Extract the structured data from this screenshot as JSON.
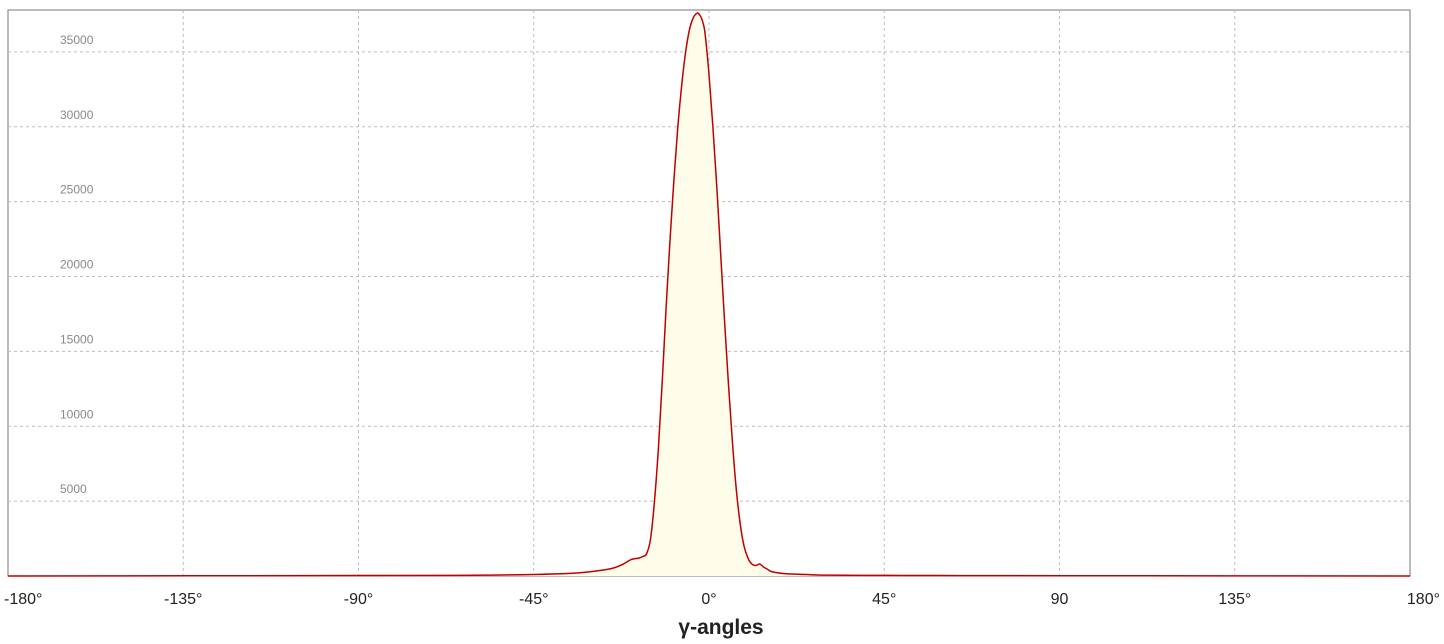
{
  "chart_data": {
    "type": "area",
    "title": "",
    "xlabel": "γ-angles",
    "ylabel": "",
    "xlim": [
      -180,
      180
    ],
    "ylim": [
      0,
      37800
    ],
    "grid": true,
    "legend": "none",
    "x_ticks": [
      -180,
      -135,
      -90,
      -45,
      0,
      45,
      90,
      135,
      180
    ],
    "x_tick_labels": [
      "-180°",
      "-135°",
      "-90°",
      "-45°",
      "0°",
      "45°",
      "90",
      "135°",
      "180°"
    ],
    "y_ticks": [
      5000,
      10000,
      15000,
      20000,
      25000,
      30000,
      35000
    ],
    "y_tick_labels": [
      "5000",
      "10000",
      "15000",
      "20000",
      "25000",
      "30000",
      "35000"
    ],
    "line_color": "#c00000",
    "fill_color": "#fdfdea",
    "series": [
      {
        "x": [
          -180,
          -90,
          -60,
          -45,
          -35,
          -30,
          -25,
          -22,
          -20,
          -18,
          -17,
          -16,
          -15,
          -14,
          -13,
          -12,
          -11,
          -10,
          -9,
          -8,
          -7,
          -6,
          -5,
          -4,
          -3,
          -2.5,
          -2,
          -1.5,
          -1,
          0,
          1,
          2,
          3,
          4,
          5,
          6,
          7,
          8,
          9,
          10,
          11,
          12,
          13,
          14,
          15,
          16,
          18,
          20,
          25,
          30,
          45,
          60,
          90,
          180
        ],
        "values": [
          0,
          30,
          50,
          100,
          180,
          300,
          500,
          800,
          1100,
          1200,
          1300,
          1500,
          2500,
          5000,
          8500,
          13000,
          18000,
          22500,
          26500,
          30000,
          32800,
          35000,
          36500,
          37300,
          37600,
          37500,
          37300,
          36900,
          36200,
          33500,
          30000,
          26000,
          21500,
          17000,
          12800,
          9000,
          5800,
          3500,
          2000,
          1200,
          800,
          700,
          800,
          600,
          450,
          300,
          200,
          150,
          100,
          60,
          40,
          30,
          20,
          0
        ]
      }
    ]
  }
}
